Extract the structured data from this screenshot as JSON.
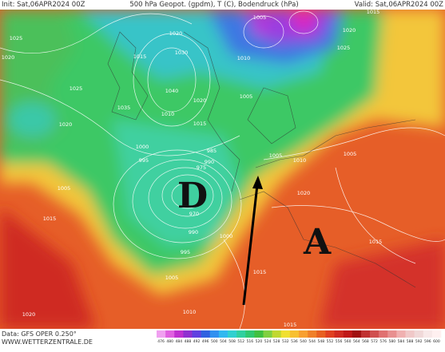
{
  "header": {
    "init": "Init: Sat,06APR2024 00Z",
    "title": "500 hPa Geopot. (gpdm), T (C), Bodendruck (hPa)",
    "valid": "Valid: Sat,06APR2024 00Z"
  },
  "map": {
    "low_label": "D",
    "high_label": "A",
    "isobar_labels": [
      "1025",
      "1020",
      "1025",
      "1020",
      "1005",
      "1015",
      "1020",
      "1000",
      "995",
      "990",
      "985",
      "975",
      "970",
      "990",
      "995",
      "1000",
      "1005",
      "1010",
      "1015",
      "1015",
      "1010",
      "1020",
      "1015",
      "1020",
      "1025",
      "1005",
      "1010",
      "1005",
      "1005",
      "1015",
      "1020",
      "1030",
      "1040",
      "1035",
      "1015",
      "1020",
      "1010",
      "1015",
      "1005"
    ]
  },
  "colorbar": {
    "ticks": [
      476,
      480,
      484,
      488,
      492,
      496,
      500,
      504,
      508,
      512,
      516,
      520,
      524,
      528,
      532,
      536,
      540,
      544,
      548,
      552,
      556,
      560,
      564,
      568,
      572,
      576,
      580,
      584,
      588,
      592,
      596,
      600
    ]
  },
  "footer": {
    "source": "Data: GFS OPER 0.250°",
    "site": "WWW.WETTERZENTRALE.DE"
  }
}
